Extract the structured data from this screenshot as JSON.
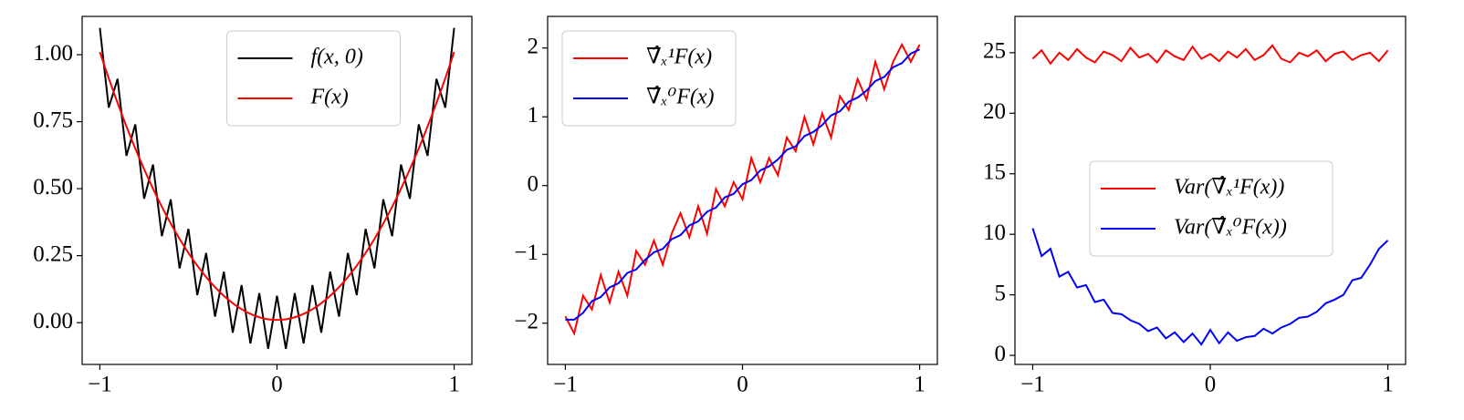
{
  "chart_data": [
    {
      "type": "line",
      "legend": "upper center",
      "xlim": [
        -1.1,
        1.1
      ],
      "xticks": [
        {
          "value": -1,
          "label": "−1"
        },
        0,
        1
      ],
      "ylim": [
        -0.156,
        1.143
      ],
      "yticks": [
        {
          "value": 0,
          "label": "0.00"
        },
        {
          "value": 0.25,
          "label": "0.25"
        },
        {
          "value": 0.5,
          "label": "0.50"
        },
        {
          "value": 0.75,
          "label": "0.75"
        },
        {
          "value": 1,
          "label": "1.00"
        }
      ],
      "x": [
        -1,
        -0.975,
        -0.95,
        -0.925,
        -0.9,
        -0.875,
        -0.85,
        -0.825,
        -0.8,
        -0.775,
        -0.75,
        -0.725,
        -0.7,
        -0.675,
        -0.65,
        -0.625,
        -0.6,
        -0.575,
        -0.55,
        -0.525,
        -0.5,
        -0.475,
        -0.45,
        -0.425,
        -0.4,
        -0.375,
        -0.35,
        -0.325,
        -0.3,
        -0.275,
        -0.25,
        -0.225,
        -0.2,
        -0.175,
        -0.15,
        -0.125,
        -0.1,
        -0.075,
        -0.05,
        -0.025,
        0,
        0.025,
        0.05,
        0.075,
        0.1,
        0.125,
        0.15,
        0.175,
        0.2,
        0.225,
        0.25,
        0.275,
        0.3,
        0.325,
        0.35,
        0.375,
        0.4,
        0.425,
        0.45,
        0.475,
        0.5,
        0.525,
        0.55,
        0.575,
        0.6,
        0.625,
        0.65,
        0.675,
        0.7,
        0.725,
        0.75,
        0.775,
        0.8,
        0.825,
        0.85,
        0.875,
        0.9,
        0.925,
        0.95,
        0.975,
        1
      ],
      "series": [
        {
          "name": "f(x, 0)",
          "color": "#000000",
          "values": [
            1.1,
            0.9506,
            0.8025,
            0.8556,
            0.91,
            0.7656,
            0.6225,
            0.6806,
            0.74,
            0.6006,
            0.4625,
            0.5256,
            0.59,
            0.4556,
            0.3225,
            0.3906,
            0.46,
            0.3306,
            0.2025,
            0.2756,
            0.35,
            0.2256,
            0.1025,
            0.1806,
            0.26,
            0.1406,
            0.0225,
            0.1056,
            0.19,
            0.0756,
            -0.0375,
            0.0506,
            0.14,
            0.0306,
            -0.0775,
            0.0156,
            0.11,
            0.0056,
            -0.0975,
            0.0006,
            0.1,
            0.0006,
            -0.0975,
            0.0056,
            0.11,
            0.0156,
            -0.0775,
            0.0306,
            0.14,
            0.0506,
            -0.0375,
            0.0756,
            0.19,
            0.1056,
            0.0225,
            0.1406,
            0.26,
            0.1806,
            0.1025,
            0.2256,
            0.35,
            0.2756,
            0.2025,
            0.3306,
            0.46,
            0.3906,
            0.3225,
            0.4556,
            0.59,
            0.5256,
            0.4625,
            0.6006,
            0.74,
            0.6806,
            0.6225,
            0.7656,
            0.91,
            0.8556,
            0.8025,
            0.9506,
            1.1
          ]
        },
        {
          "name": "F(x)",
          "color": "#ff0000",
          "values": [
            1.01,
            0.9606,
            0.9125,
            0.8656,
            0.82,
            0.7756,
            0.7325,
            0.6906,
            0.65,
            0.6106,
            0.5725,
            0.5356,
            0.5,
            0.4656,
            0.4325,
            0.4006,
            0.37,
            0.3406,
            0.3125,
            0.2856,
            0.26,
            0.2356,
            0.2125,
            0.1906,
            0.17,
            0.1506,
            0.1325,
            0.1156,
            0.1,
            0.0856,
            0.0725,
            0.0606,
            0.05,
            0.0406,
            0.0325,
            0.0256,
            0.02,
            0.0156,
            0.0125,
            0.0106,
            0.01,
            0.0106,
            0.0125,
            0.0156,
            0.02,
            0.0256,
            0.0325,
            0.0406,
            0.05,
            0.0606,
            0.0725,
            0.0856,
            0.1,
            0.1156,
            0.1325,
            0.1506,
            0.17,
            0.1906,
            0.2125,
            0.2356,
            0.26,
            0.2856,
            0.3125,
            0.3406,
            0.37,
            0.4006,
            0.4325,
            0.4656,
            0.5,
            0.5356,
            0.5725,
            0.6106,
            0.65,
            0.6906,
            0.7325,
            0.7756,
            0.82,
            0.8656,
            0.9125,
            0.9606,
            1.01
          ]
        }
      ]
    },
    {
      "type": "line",
      "legend": "upper left",
      "xlim": [
        -1.1,
        1.1
      ],
      "xticks": [
        {
          "value": -1,
          "label": "−1"
        },
        0,
        1
      ],
      "ylim": [
        -2.6,
        2.46
      ],
      "yticks": [
        {
          "value": -2,
          "label": "−2"
        },
        {
          "value": -1,
          "label": "−1"
        },
        0,
        1,
        2
      ],
      "x": [
        -1,
        -0.95,
        -0.9,
        -0.85,
        -0.8,
        -0.75,
        -0.7,
        -0.65,
        -0.6,
        -0.55,
        -0.5,
        -0.45,
        -0.4,
        -0.35,
        -0.3,
        -0.25,
        -0.2,
        -0.15,
        -0.1,
        -0.05,
        0,
        0.05,
        0.1,
        0.15,
        0.2,
        0.25,
        0.3,
        0.35,
        0.4,
        0.45,
        0.5,
        0.55,
        0.6,
        0.65,
        0.7,
        0.75,
        0.8,
        0.85,
        0.9,
        0.95,
        1
      ],
      "series": [
        {
          "name": "∇̂ₓ¹F(x)",
          "color": "#ff0000",
          "values": [
            -1.9,
            -2.15,
            -1.6,
            -1.8,
            -1.3,
            -1.7,
            -1.25,
            -1.6,
            -0.95,
            -1.15,
            -0.8,
            -1.15,
            -0.7,
            -0.4,
            -0.75,
            -0.3,
            -0.7,
            -0.05,
            -0.3,
            0.05,
            -0.2,
            0.4,
            0.05,
            0.4,
            0.15,
            0.7,
            0.5,
            1.0,
            0.6,
            1.05,
            0.7,
            1.3,
            1.1,
            1.55,
            1.25,
            1.8,
            1.4,
            1.8,
            2.05,
            1.8,
            2.05
          ]
        },
        {
          "name": "∇̂ₓ⁰F(x)",
          "color": "#0000ff",
          "values": [
            -1.95,
            -1.95,
            -1.85,
            -1.68,
            -1.62,
            -1.48,
            -1.42,
            -1.27,
            -1.22,
            -1.08,
            -0.97,
            -0.92,
            -0.78,
            -0.72,
            -0.58,
            -0.52,
            -0.38,
            -0.32,
            -0.17,
            -0.12,
            0.02,
            0.08,
            0.22,
            0.28,
            0.38,
            0.52,
            0.57,
            0.72,
            0.78,
            0.88,
            1.02,
            1.08,
            1.22,
            1.28,
            1.38,
            1.52,
            1.58,
            1.72,
            1.78,
            1.92,
            1.98
          ]
        }
      ]
    },
    {
      "type": "line",
      "legend": "center right",
      "xlim": [
        -1.1,
        1.1
      ],
      "xticks": [
        {
          "value": -1,
          "label": "−1"
        },
        0,
        1
      ],
      "ylim": [
        -0.75,
        28
      ],
      "yticks": [
        0,
        5,
        10,
        15,
        20,
        25
      ],
      "x": [
        -1,
        -0.95,
        -0.9,
        -0.85,
        -0.8,
        -0.75,
        -0.7,
        -0.65,
        -0.6,
        -0.55,
        -0.5,
        -0.45,
        -0.4,
        -0.35,
        -0.3,
        -0.25,
        -0.2,
        -0.15,
        -0.1,
        -0.05,
        0,
        0.05,
        0.1,
        0.15,
        0.2,
        0.25,
        0.3,
        0.35,
        0.4,
        0.45,
        0.5,
        0.55,
        0.6,
        0.65,
        0.7,
        0.75,
        0.8,
        0.85,
        0.9,
        0.95,
        1
      ],
      "series": [
        {
          "name": "Var(∇̂ₓ¹F(x))",
          "color": "#ff0000",
          "values": [
            24.5,
            25.2,
            24.1,
            25.0,
            24.4,
            25.3,
            24.6,
            24.2,
            25.1,
            24.8,
            24.3,
            25.4,
            24.6,
            24.9,
            24.2,
            25.2,
            24.7,
            24.4,
            25.5,
            24.5,
            24.9,
            24.3,
            25.1,
            24.6,
            25.3,
            24.4,
            24.8,
            25.6,
            24.5,
            24.2,
            25.0,
            24.7,
            25.2,
            24.3,
            24.9,
            25.1,
            24.4,
            24.8,
            25.0,
            24.3,
            25.2
          ]
        },
        {
          "name": "Var(∇̂ₓ⁰F(x))",
          "color": "#0000ff",
          "values": [
            10.5,
            8.2,
            8.8,
            6.5,
            6.9,
            5.6,
            5.8,
            4.4,
            4.6,
            3.5,
            3.4,
            2.9,
            2.6,
            2.0,
            2.3,
            1.4,
            1.9,
            1.1,
            1.8,
            0.9,
            2.1,
            1.0,
            1.9,
            1.2,
            1.5,
            1.6,
            2.2,
            1.8,
            2.3,
            2.6,
            3.1,
            3.2,
            3.6,
            4.3,
            4.6,
            5.0,
            6.2,
            6.4,
            7.5,
            8.8,
            9.5
          ]
        }
      ]
    }
  ]
}
